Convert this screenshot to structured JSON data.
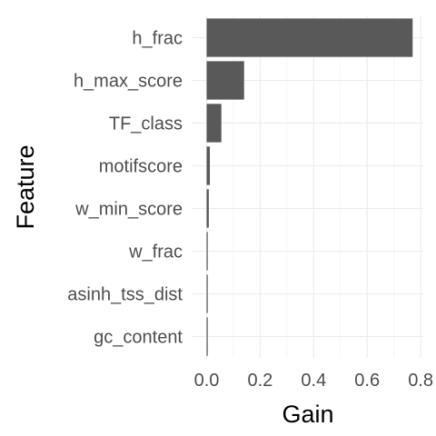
{
  "chart_data": {
    "type": "bar",
    "orientation": "horizontal",
    "categories": [
      "h_frac",
      "h_max_score",
      "TF_class",
      "motifscore",
      "w_min_score",
      "w_frac",
      "asinh_tss_dist",
      "gc_content"
    ],
    "values": [
      0.77,
      0.14,
      0.055,
      0.012,
      0.008,
      0.004,
      0.003,
      0.002
    ],
    "xlabel": "Gain",
    "ylabel": "Feature",
    "xlim": [
      -0.02,
      0.82
    ],
    "xticks": [
      0.0,
      0.2,
      0.4,
      0.6,
      0.8
    ],
    "xtick_labels": [
      "0.0",
      "0.2",
      "0.4",
      "0.6",
      "0.8"
    ],
    "grid": true,
    "legend": "none",
    "bar_color": "#595959"
  }
}
